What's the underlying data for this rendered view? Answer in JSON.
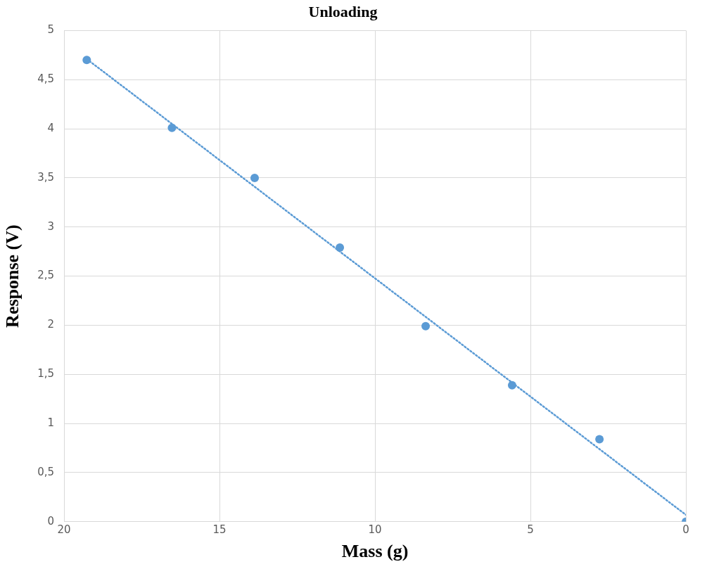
{
  "chart_data": {
    "type": "scatter",
    "title": "Unloading",
    "xlabel": "Mass (g)",
    "ylabel": "Response (V)",
    "series": [
      {
        "color": "#5b9bd5",
        "x": [
          19.27,
          16.53,
          13.87,
          11.13,
          8.37,
          5.59,
          2.78,
          0
        ],
        "values": [
          4.7,
          4.01,
          3.5,
          2.79,
          1.99,
          1.39,
          0.84,
          0
        ]
      },
      {
        "type": "line",
        "color": "#5b9bd5",
        "line_style": "dotted",
        "marker": "none",
        "x": [
          19.27,
          0
        ],
        "values": [
          4.71,
          0.07
        ]
      }
    ],
    "xlim": [
      20,
      0
    ],
    "xticks": [
      20,
      15,
      10,
      5,
      0
    ],
    "ylim": [
      0,
      5
    ],
    "yticks": [
      0,
      {
        "value": 0.5,
        "label": "0,5"
      },
      1,
      {
        "value": 1.5,
        "label": "1,5"
      },
      2,
      {
        "value": 2.5,
        "label": "2,5"
      },
      3,
      {
        "value": 3.5,
        "label": "3,5"
      },
      4,
      {
        "value": 4.5,
        "label": "4,5"
      },
      5
    ],
    "grid": true,
    "legend": false,
    "marker": "circle"
  }
}
